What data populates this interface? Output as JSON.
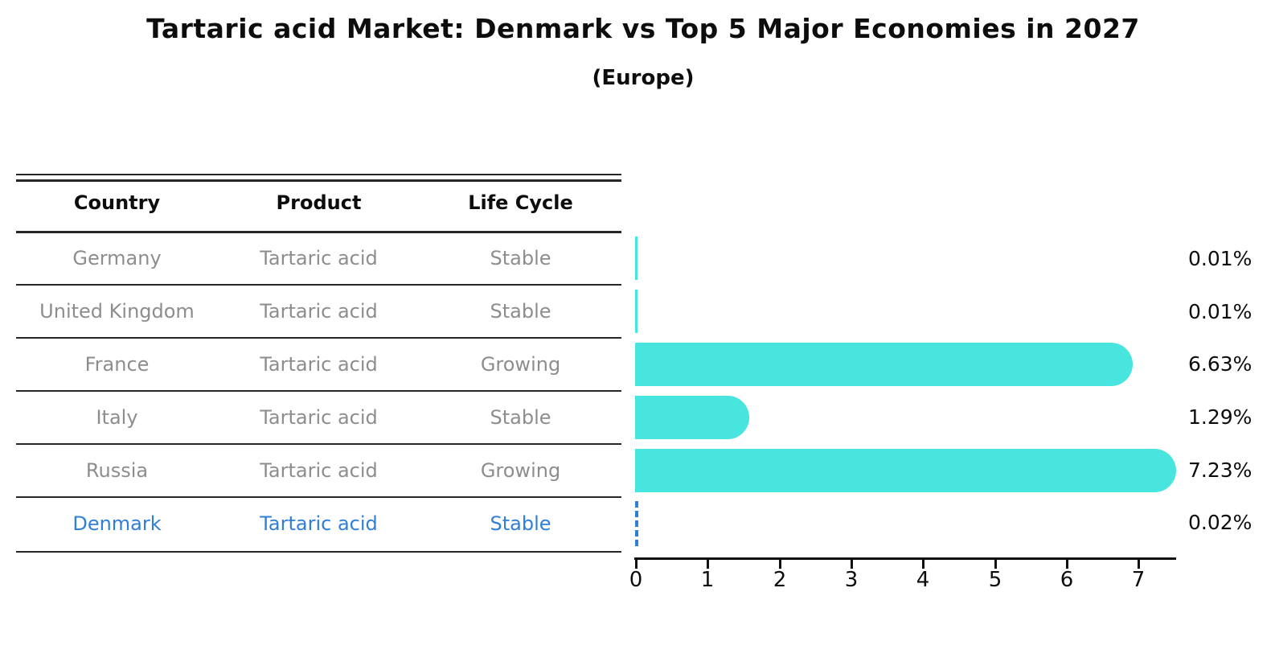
{
  "title": "Tartaric acid Market: Denmark vs Top 5 Major Economies in 2027",
  "subtitle": "(Europe)",
  "colors": {
    "bar": "#48E4DE",
    "highlight": "#2F7ED8",
    "muted_text": "#8d8d8d"
  },
  "table": {
    "headers": [
      "Country",
      "Product",
      "Life Cycle"
    ],
    "rows": [
      {
        "country": "Germany",
        "product": "Tartaric acid",
        "life_cycle": "Stable"
      },
      {
        "country": "United Kingdom",
        "product": "Tartaric acid",
        "life_cycle": "Stable"
      },
      {
        "country": "France",
        "product": "Tartaric acid",
        "life_cycle": "Growing"
      },
      {
        "country": "Italy",
        "product": "Tartaric acid",
        "life_cycle": "Stable"
      },
      {
        "country": "Russia",
        "product": "Tartaric acid",
        "life_cycle": "Growing"
      },
      {
        "country": "Denmark",
        "product": "Tartaric acid",
        "life_cycle": "Stable"
      }
    ]
  },
  "chart_data": {
    "type": "bar",
    "orientation": "horizontal",
    "title": "Tartaric acid Market: Denmark vs Top 5 Major Economies in 2027",
    "subtitle": "(Europe)",
    "categories": [
      "Germany",
      "United Kingdom",
      "France",
      "Italy",
      "Russia",
      "Denmark"
    ],
    "values": [
      0.01,
      0.01,
      6.63,
      1.29,
      7.23,
      0.02
    ],
    "value_labels": [
      "0.01%",
      "0.01%",
      "6.63%",
      "1.29%",
      "7.23%",
      "0.02%"
    ],
    "xlabel": "",
    "ylabel": "",
    "xlim": [
      0,
      7.5
    ],
    "xticks": [
      "0",
      "1",
      "2",
      "3",
      "4",
      "5",
      "6",
      "7"
    ],
    "grid": false,
    "legend": false,
    "highlight_index": 5,
    "bar_color": "#48E4DE",
    "highlight_style": "dashed-blue-outline"
  }
}
